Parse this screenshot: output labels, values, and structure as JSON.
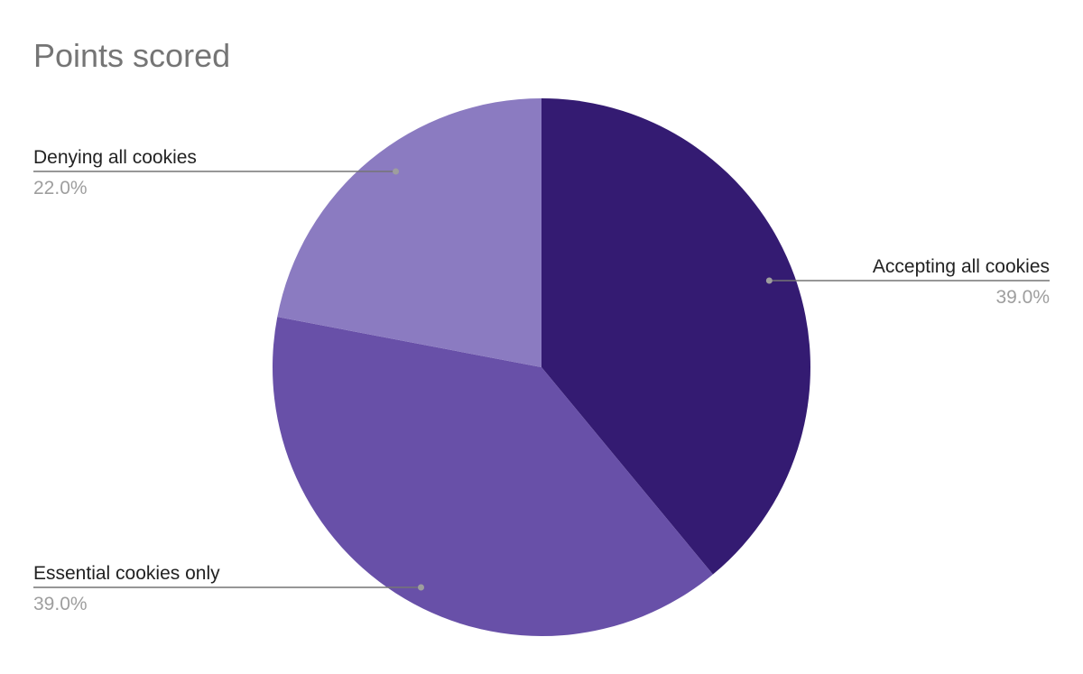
{
  "chart_data": {
    "type": "pie",
    "title": "Points scored",
    "slices": [
      {
        "label": "Accepting all cookies",
        "value": 39.0,
        "percent_label": "39.0%",
        "color": "#341b72"
      },
      {
        "label": "Essential cookies only",
        "value": 39.0,
        "percent_label": "39.0%",
        "color": "#6850a8"
      },
      {
        "label": "Denying all cookies",
        "value": 22.0,
        "percent_label": "22.0%",
        "color": "#8b7bc1"
      }
    ],
    "start_angle": "12 o'clock",
    "direction": "clockwise",
    "label_style": "leader-lines"
  }
}
